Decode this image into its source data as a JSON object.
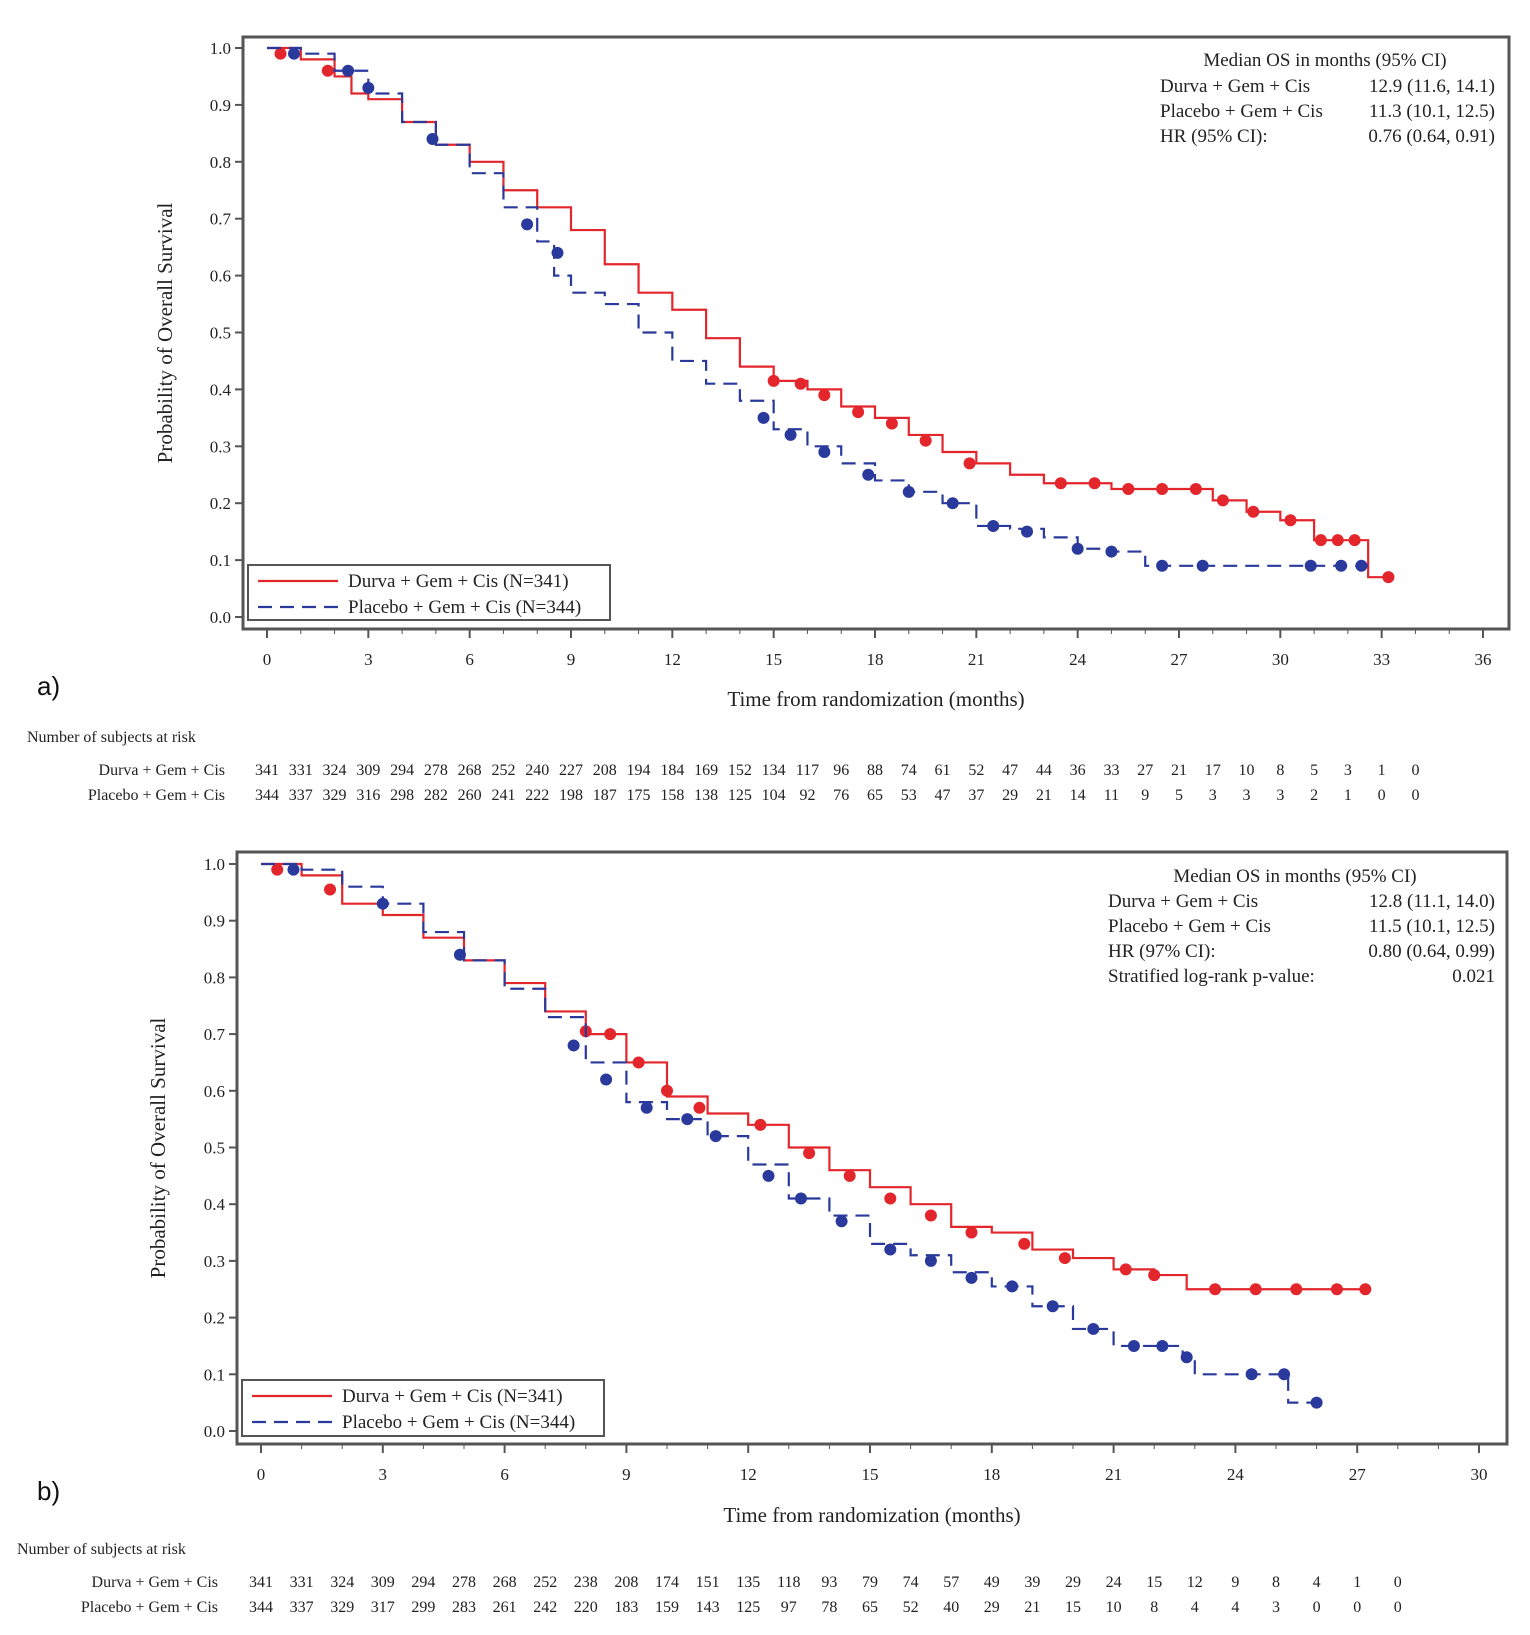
{
  "colors": {
    "durva": "#e3262c",
    "placebo": "#2a3a9c",
    "axis": "#555555"
  },
  "chart_data": [
    {
      "type": "line",
      "subtype": "kaplan-meier",
      "panel_label": "a)",
      "xlabel": "Time from randomization (months)",
      "ylabel": "Probability of Overall Survival",
      "xlim": [
        0,
        36
      ],
      "ylim": [
        0,
        1
      ],
      "xticks": [
        0,
        3,
        6,
        9,
        12,
        15,
        18,
        21,
        24,
        27,
        30,
        33,
        36
      ],
      "yticks": [
        "0.0",
        "0.1",
        "0.2",
        "0.3",
        "0.4",
        "0.5",
        "0.6",
        "0.7",
        "0.8",
        "0.9",
        "1.0"
      ],
      "legend_position": "bottom-left",
      "legend": [
        "Durva + Gem + Cis (N=341)",
        "Placebo + Gem + Cis (N=344)"
      ],
      "annotation": {
        "title": "Median OS in months (95% CI)",
        "rows": [
          {
            "label": "Durva + Gem + Cis",
            "value": "12.9 (11.6, 14.1)"
          },
          {
            "label": "Placebo + Gem + Cis",
            "value": "11.3 (10.1, 12.5)"
          },
          {
            "label": "HR (95% CI):",
            "value": "0.76 (0.64, 0.91)"
          }
        ]
      },
      "series": [
        {
          "name": "Durva + Gem + Cis (N=341)",
          "style": "solid",
          "points": [
            [
              0,
              1
            ],
            [
              1,
              0.98
            ],
            [
              2,
              0.95
            ],
            [
              2.5,
              0.92
            ],
            [
              3,
              0.91
            ],
            [
              4,
              0.87
            ],
            [
              5,
              0.83
            ],
            [
              6,
              0.8
            ],
            [
              7,
              0.75
            ],
            [
              8,
              0.72
            ],
            [
              9,
              0.68
            ],
            [
              10,
              0.62
            ],
            [
              11,
              0.57
            ],
            [
              12,
              0.54
            ],
            [
              13,
              0.49
            ],
            [
              14,
              0.44
            ],
            [
              15,
              0.415
            ],
            [
              16,
              0.4
            ],
            [
              17,
              0.37
            ],
            [
              18,
              0.35
            ],
            [
              19,
              0.32
            ],
            [
              20,
              0.29
            ],
            [
              21,
              0.27
            ],
            [
              22,
              0.25
            ],
            [
              23,
              0.235
            ],
            [
              25,
              0.225
            ],
            [
              27.5,
              0.225
            ],
            [
              28,
              0.205
            ],
            [
              29,
              0.185
            ],
            [
              30,
              0.17
            ],
            [
              31,
              0.135
            ],
            [
              32.6,
              0.135
            ],
            [
              32.6,
              0.07
            ],
            [
              33.2,
              0.07
            ]
          ],
          "censored": [
            [
              0.4,
              0.99
            ],
            [
              1.8,
              0.96
            ],
            [
              15,
              0.415
            ],
            [
              15.8,
              0.41
            ],
            [
              16.5,
              0.39
            ],
            [
              17.5,
              0.36
            ],
            [
              18.5,
              0.34
            ],
            [
              19.5,
              0.31
            ],
            [
              20.8,
              0.27
            ],
            [
              23.5,
              0.235
            ],
            [
              24.5,
              0.235
            ],
            [
              25.5,
              0.225
            ],
            [
              26.5,
              0.225
            ],
            [
              27.5,
              0.225
            ],
            [
              28.3,
              0.205
            ],
            [
              29.2,
              0.185
            ],
            [
              30.3,
              0.17
            ],
            [
              31.2,
              0.135
            ],
            [
              31.7,
              0.135
            ],
            [
              32.2,
              0.135
            ],
            [
              33.2,
              0.07
            ]
          ]
        },
        {
          "name": "Placebo + Gem + Cis (N=344)",
          "style": "dashed",
          "points": [
            [
              0,
              1
            ],
            [
              1,
              0.99
            ],
            [
              2,
              0.96
            ],
            [
              3,
              0.92
            ],
            [
              4,
              0.87
            ],
            [
              5,
              0.83
            ],
            [
              6,
              0.78
            ],
            [
              7,
              0.72
            ],
            [
              8,
              0.66
            ],
            [
              8.5,
              0.6
            ],
            [
              9,
              0.57
            ],
            [
              10,
              0.55
            ],
            [
              11,
              0.5
            ],
            [
              12,
              0.45
            ],
            [
              13,
              0.41
            ],
            [
              14,
              0.38
            ],
            [
              15,
              0.33
            ],
            [
              16,
              0.3
            ],
            [
              17,
              0.27
            ],
            [
              18,
              0.24
            ],
            [
              19,
              0.22
            ],
            [
              20,
              0.2
            ],
            [
              21,
              0.16
            ],
            [
              22,
              0.155
            ],
            [
              23,
              0.14
            ],
            [
              24,
              0.12
            ],
            [
              25,
              0.115
            ],
            [
              26,
              0.09
            ],
            [
              32.6,
              0.09
            ]
          ],
          "censored": [
            [
              0.8,
              0.99
            ],
            [
              2.4,
              0.96
            ],
            [
              3,
              0.93
            ],
            [
              4.9,
              0.84
            ],
            [
              7.7,
              0.69
            ],
            [
              8.6,
              0.64
            ],
            [
              14.7,
              0.35
            ],
            [
              15.5,
              0.32
            ],
            [
              16.5,
              0.29
            ],
            [
              17.8,
              0.25
            ],
            [
              19,
              0.22
            ],
            [
              20.3,
              0.2
            ],
            [
              21.5,
              0.16
            ],
            [
              22.5,
              0.15
            ],
            [
              24,
              0.12
            ],
            [
              25,
              0.115
            ],
            [
              26.5,
              0.09
            ],
            [
              27.7,
              0.09
            ],
            [
              30.9,
              0.09
            ],
            [
              31.8,
              0.09
            ],
            [
              32.4,
              0.09
            ]
          ]
        }
      ],
      "risk_table": {
        "title": "Number of subjects at risk",
        "rows": [
          {
            "label": "Durva + Gem + Cis",
            "values": [
              341,
              331,
              324,
              309,
              294,
              278,
              268,
              252,
              240,
              227,
              208,
              194,
              184,
              169,
              152,
              134,
              117,
              96,
              88,
              74,
              61,
              52,
              47,
              44,
              36,
              33,
              27,
              21,
              17,
              10,
              8,
              5,
              3,
              1,
              0
            ]
          },
          {
            "label": "Placebo + Gem + Cis",
            "values": [
              344,
              337,
              329,
              316,
              298,
              282,
              260,
              241,
              222,
              198,
              187,
              175,
              158,
              138,
              125,
              104,
              92,
              76,
              65,
              53,
              47,
              37,
              29,
              21,
              14,
              11,
              9,
              5,
              3,
              3,
              3,
              2,
              1,
              0,
              0
            ]
          }
        ]
      }
    },
    {
      "type": "line",
      "subtype": "kaplan-meier",
      "panel_label": "b)",
      "xlabel": "Time from randomization (months)",
      "ylabel": "Probability of Overall Survival",
      "xlim": [
        0,
        30
      ],
      "ylim": [
        0,
        1
      ],
      "xticks": [
        0,
        3,
        6,
        9,
        12,
        15,
        18,
        21,
        24,
        27,
        30
      ],
      "yticks": [
        "0.0",
        "0.1",
        "0.2",
        "0.3",
        "0.4",
        "0.5",
        "0.6",
        "0.7",
        "0.8",
        "0.9",
        "1.0"
      ],
      "legend_position": "bottom-left",
      "legend": [
        "Durva + Gem + Cis (N=341)",
        "Placebo + Gem + Cis (N=344)"
      ],
      "annotation": {
        "title": "Median OS in months (95% CI)",
        "rows": [
          {
            "label": "Durva + Gem + Cis",
            "value": "12.8 (11.1, 14.0)"
          },
          {
            "label": "Placebo + Gem + Cis",
            "value": "11.5 (10.1, 12.5)"
          },
          {
            "label": "HR (97% CI):",
            "value": "0.80 (0.64, 0.99)"
          },
          {
            "label": "Stratified log-rank p-value:",
            "value": "0.021"
          }
        ]
      },
      "series": [
        {
          "name": "Durva + Gem + Cis (N=341)",
          "style": "solid",
          "points": [
            [
              0,
              1
            ],
            [
              1,
              0.98
            ],
            [
              2,
              0.93
            ],
            [
              3,
              0.91
            ],
            [
              4,
              0.87
            ],
            [
              5,
              0.83
            ],
            [
              6,
              0.79
            ],
            [
              7,
              0.74
            ],
            [
              8,
              0.7
            ],
            [
              9,
              0.65
            ],
            [
              10,
              0.59
            ],
            [
              11,
              0.56
            ],
            [
              12,
              0.54
            ],
            [
              13,
              0.5
            ],
            [
              14,
              0.46
            ],
            [
              15,
              0.43
            ],
            [
              16,
              0.4
            ],
            [
              17,
              0.36
            ],
            [
              18,
              0.35
            ],
            [
              19,
              0.32
            ],
            [
              20,
              0.305
            ],
            [
              21,
              0.285
            ],
            [
              22,
              0.275
            ],
            [
              22.8,
              0.25
            ],
            [
              27.2,
              0.25
            ]
          ],
          "censored": [
            [
              0.4,
              0.99
            ],
            [
              1.7,
              0.955
            ],
            [
              8,
              0.705
            ],
            [
              8.6,
              0.7
            ],
            [
              9.3,
              0.65
            ],
            [
              10,
              0.6
            ],
            [
              10.8,
              0.57
            ],
            [
              12.3,
              0.54
            ],
            [
              13.5,
              0.49
            ],
            [
              14.5,
              0.45
            ],
            [
              15.5,
              0.41
            ],
            [
              16.5,
              0.38
            ],
            [
              17.5,
              0.35
            ],
            [
              18.8,
              0.33
            ],
            [
              19.8,
              0.305
            ],
            [
              21.3,
              0.285
            ],
            [
              22,
              0.275
            ],
            [
              23.5,
              0.25
            ],
            [
              24.5,
              0.25
            ],
            [
              25.5,
              0.25
            ],
            [
              26.5,
              0.25
            ],
            [
              27.2,
              0.25
            ]
          ]
        },
        {
          "name": "Placebo + Gem + Cis (N=344)",
          "style": "dashed",
          "points": [
            [
              0,
              1
            ],
            [
              1,
              0.99
            ],
            [
              2,
              0.96
            ],
            [
              3,
              0.93
            ],
            [
              4,
              0.88
            ],
            [
              5,
              0.83
            ],
            [
              6,
              0.78
            ],
            [
              7,
              0.73
            ],
            [
              8,
              0.65
            ],
            [
              9,
              0.58
            ],
            [
              10,
              0.55
            ],
            [
              11,
              0.52
            ],
            [
              12,
              0.47
            ],
            [
              13,
              0.41
            ],
            [
              14,
              0.38
            ],
            [
              15,
              0.33
            ],
            [
              16,
              0.31
            ],
            [
              17,
              0.28
            ],
            [
              18,
              0.255
            ],
            [
              19,
              0.22
            ],
            [
              20,
              0.18
            ],
            [
              21,
              0.15
            ],
            [
              22.5,
              0.15
            ],
            [
              22.7,
              0.13
            ],
            [
              23,
              0.1
            ],
            [
              25.3,
              0.1
            ],
            [
              25.3,
              0.05
            ],
            [
              26,
              0.05
            ]
          ],
          "censored": [
            [
              0.8,
              0.99
            ],
            [
              3,
              0.93
            ],
            [
              4.9,
              0.84
            ],
            [
              7.7,
              0.68
            ],
            [
              8.5,
              0.62
            ],
            [
              9.5,
              0.57
            ],
            [
              10.5,
              0.55
            ],
            [
              11.2,
              0.52
            ],
            [
              12.5,
              0.45
            ],
            [
              13.3,
              0.41
            ],
            [
              14.3,
              0.37
            ],
            [
              15.5,
              0.32
            ],
            [
              16.5,
              0.3
            ],
            [
              17.5,
              0.27
            ],
            [
              18.5,
              0.255
            ],
            [
              19.5,
              0.22
            ],
            [
              20.5,
              0.18
            ],
            [
              21.5,
              0.15
            ],
            [
              22.2,
              0.15
            ],
            [
              22.8,
              0.13
            ],
            [
              24.4,
              0.1
            ],
            [
              25.2,
              0.1
            ],
            [
              26,
              0.05
            ]
          ]
        }
      ],
      "risk_table": {
        "title": "Number of subjects at risk",
        "rows": [
          {
            "label": "Durva + Gem + Cis",
            "values": [
              341,
              331,
              324,
              309,
              294,
              278,
              268,
              252,
              238,
              208,
              174,
              151,
              135,
              118,
              93,
              79,
              74,
              57,
              49,
              39,
              29,
              24,
              15,
              12,
              9,
              8,
              4,
              1,
              0
            ]
          },
          {
            "label": "Placebo + Gem + Cis",
            "values": [
              344,
              337,
              329,
              317,
              299,
              283,
              261,
              242,
              220,
              183,
              159,
              143,
              125,
              97,
              78,
              65,
              52,
              40,
              29,
              21,
              15,
              10,
              8,
              4,
              4,
              3,
              0,
              0,
              0
            ]
          }
        ]
      }
    }
  ]
}
